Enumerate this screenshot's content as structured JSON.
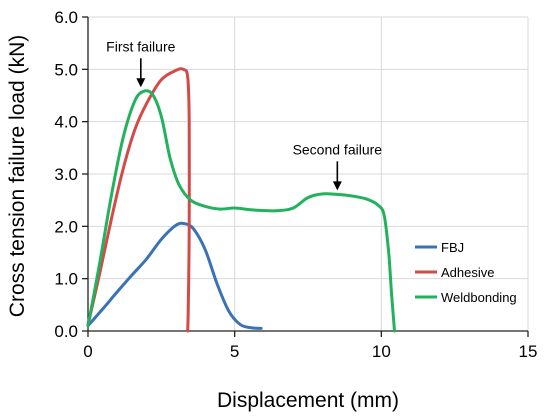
{
  "chart_data": {
    "type": "line",
    "xlabel": "Displacement (mm)",
    "ylabel": "Cross tension failure load (kN)",
    "xlim": [
      0,
      15
    ],
    "ylim": [
      0,
      6
    ],
    "x_ticks": [
      "0",
      "5",
      "10",
      "15"
    ],
    "y_ticks": [
      "0.0",
      "1.0",
      "2.0",
      "3.0",
      "4.0",
      "5.0",
      "6.0"
    ],
    "grid": true,
    "legend_position": "lower-right",
    "series": [
      {
        "name": "FBJ",
        "color": "#3a72b6",
        "points": [
          [
            0.0,
            0.1
          ],
          [
            0.5,
            0.42
          ],
          [
            1.0,
            0.75
          ],
          [
            1.5,
            1.07
          ],
          [
            2.0,
            1.38
          ],
          [
            2.5,
            1.75
          ],
          [
            3.0,
            2.02
          ],
          [
            3.3,
            2.05
          ],
          [
            3.6,
            1.95
          ],
          [
            4.0,
            1.55
          ],
          [
            4.4,
            0.9
          ],
          [
            4.8,
            0.38
          ],
          [
            5.2,
            0.12
          ],
          [
            5.6,
            0.06
          ],
          [
            5.9,
            0.05
          ]
        ]
      },
      {
        "name": "Adhesive",
        "color": "#d14b48",
        "points": [
          [
            0.0,
            0.12
          ],
          [
            0.4,
            1.1
          ],
          [
            0.8,
            2.15
          ],
          [
            1.2,
            3.1
          ],
          [
            1.6,
            3.85
          ],
          [
            2.0,
            4.35
          ],
          [
            2.5,
            4.8
          ],
          [
            3.0,
            4.98
          ],
          [
            3.25,
            5.0
          ],
          [
            3.4,
            4.85
          ],
          [
            3.45,
            4.0
          ],
          [
            3.45,
            2.0
          ],
          [
            3.42,
            0.5
          ],
          [
            3.4,
            0.0
          ]
        ]
      },
      {
        "name": "Weldbonding",
        "color": "#22b15c",
        "points": [
          [
            0.0,
            0.1
          ],
          [
            0.4,
            1.3
          ],
          [
            0.8,
            2.6
          ],
          [
            1.2,
            3.7
          ],
          [
            1.6,
            4.4
          ],
          [
            1.9,
            4.58
          ],
          [
            2.2,
            4.52
          ],
          [
            2.5,
            4.1
          ],
          [
            2.8,
            3.3
          ],
          [
            3.1,
            2.8
          ],
          [
            3.5,
            2.5
          ],
          [
            4.0,
            2.38
          ],
          [
            4.5,
            2.33
          ],
          [
            5.0,
            2.35
          ],
          [
            5.5,
            2.32
          ],
          [
            6.0,
            2.3
          ],
          [
            6.5,
            2.3
          ],
          [
            7.0,
            2.35
          ],
          [
            7.5,
            2.55
          ],
          [
            8.0,
            2.62
          ],
          [
            8.5,
            2.61
          ],
          [
            9.0,
            2.58
          ],
          [
            9.5,
            2.52
          ],
          [
            9.9,
            2.4
          ],
          [
            10.1,
            2.2
          ],
          [
            10.25,
            1.5
          ],
          [
            10.35,
            0.7
          ],
          [
            10.45,
            0.0
          ]
        ]
      }
    ],
    "annotations": [
      {
        "text": "First failure",
        "x": 1.8,
        "y": 4.6
      },
      {
        "text": "Second failure",
        "x": 8.5,
        "y": 2.63
      }
    ]
  }
}
